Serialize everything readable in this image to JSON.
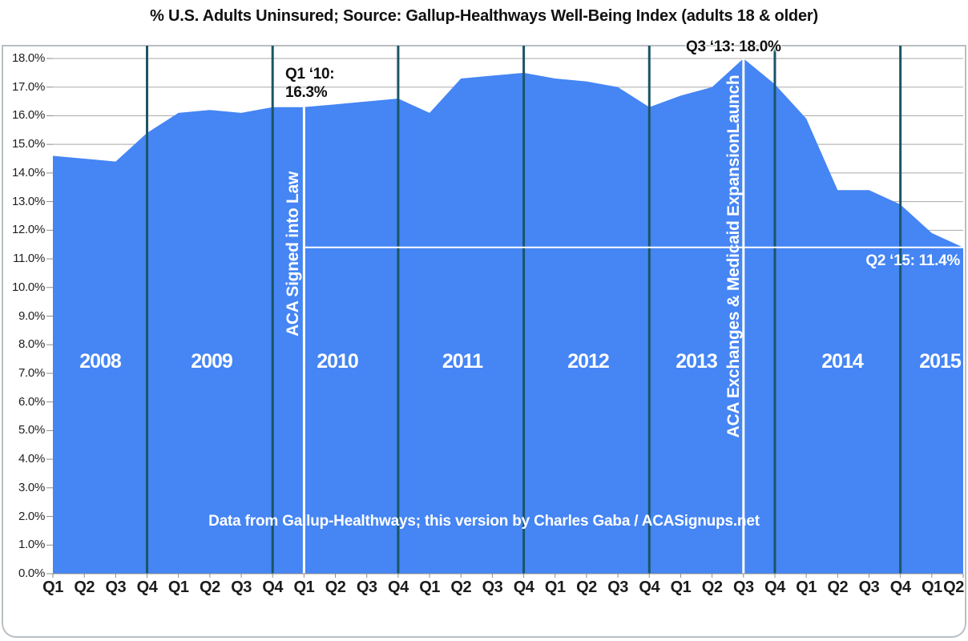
{
  "title": "% U.S. Adults Uninsured; Source: Gallup-Healthways Well-Being Index (adults 18 & older)",
  "attribution": "Data from Gallup-Healthways; this version by Charles Gaba / ACASignups.net",
  "colors": {
    "area": "#4585f4",
    "year_divider": "#1b5565",
    "event_line": "#ffffff",
    "reference_line": "#ffffff",
    "grid": "#a9a9a9",
    "axis": "#8c8c8c",
    "frame": "#b9bfc3",
    "title_text": "#111111",
    "axis_text": "#1f1f1f",
    "label_on_area": "#ffffff"
  },
  "chart_data": {
    "type": "area",
    "title": "% U.S. Adults Uninsured",
    "source": "Gallup-Healthways Well-Being Index (adults 18 & older)",
    "ylim": [
      0,
      18
    ],
    "ytick_step": 1,
    "ytick_labels": [
      "18.0%",
      "17.0%",
      "16.0%",
      "15.0%",
      "14.0%",
      "13.0%",
      "12.0%",
      "11.0%",
      "10.0%",
      "9.0%",
      "8.0%",
      "7.0%",
      "6.0%",
      "5.0%",
      "4.0%",
      "3.0%",
      "2.0%",
      "1.0%",
      "0.0%"
    ],
    "grid": true,
    "legend": false,
    "years": [
      {
        "label": "2008",
        "quarters": [
          "Q1",
          "Q2",
          "Q3",
          "Q4"
        ],
        "values": [
          14.6,
          14.5,
          14.4,
          15.4
        ]
      },
      {
        "label": "2009",
        "quarters": [
          "Q1",
          "Q2",
          "Q3",
          "Q4"
        ],
        "values": [
          16.1,
          16.2,
          16.1,
          16.3
        ]
      },
      {
        "label": "2010",
        "quarters": [
          "Q1",
          "Q2",
          "Q3",
          "Q4"
        ],
        "values": [
          16.3,
          16.4,
          16.5,
          16.6
        ]
      },
      {
        "label": "2011",
        "quarters": [
          "Q1",
          "Q2",
          "Q3",
          "Q4"
        ],
        "values": [
          16.1,
          17.3,
          17.4,
          17.5
        ]
      },
      {
        "label": "2012",
        "quarters": [
          "Q1",
          "Q2",
          "Q3",
          "Q4"
        ],
        "values": [
          17.3,
          17.2,
          17.0,
          16.3
        ]
      },
      {
        "label": "2013",
        "quarters": [
          "Q1",
          "Q2",
          "Q3",
          "Q4"
        ],
        "values": [
          16.7,
          17.0,
          18.0,
          17.1
        ]
      },
      {
        "label": "2014",
        "quarters": [
          "Q1",
          "Q2",
          "Q3",
          "Q4"
        ],
        "values": [
          15.9,
          13.4,
          13.4,
          12.9
        ]
      },
      {
        "label": "2015",
        "quarters": [
          "Q1",
          "Q2"
        ],
        "values": [
          11.9,
          11.4
        ]
      }
    ],
    "annotations": [
      {
        "id": "q1-2010",
        "line1": "Q1 ‘10:",
        "line2": "16.3%"
      },
      {
        "id": "q3-2013",
        "text": "Q3 ‘13: 18.0%"
      },
      {
        "id": "q2-2015",
        "text": "Q2 ‘15: 11.4%"
      }
    ],
    "event_lines": [
      {
        "label": "ACA Signed into Law",
        "at_year": "2010",
        "at_quarter": "Q1"
      },
      {
        "label": "ACA Exchanges & Medicaid ExpansionLaunch",
        "at_year": "2013",
        "at_quarter": "Q3"
      }
    ],
    "reference_line": {
      "value": 11.4,
      "starts_at_year": "2010",
      "starts_at_quarter": "Q1"
    }
  }
}
